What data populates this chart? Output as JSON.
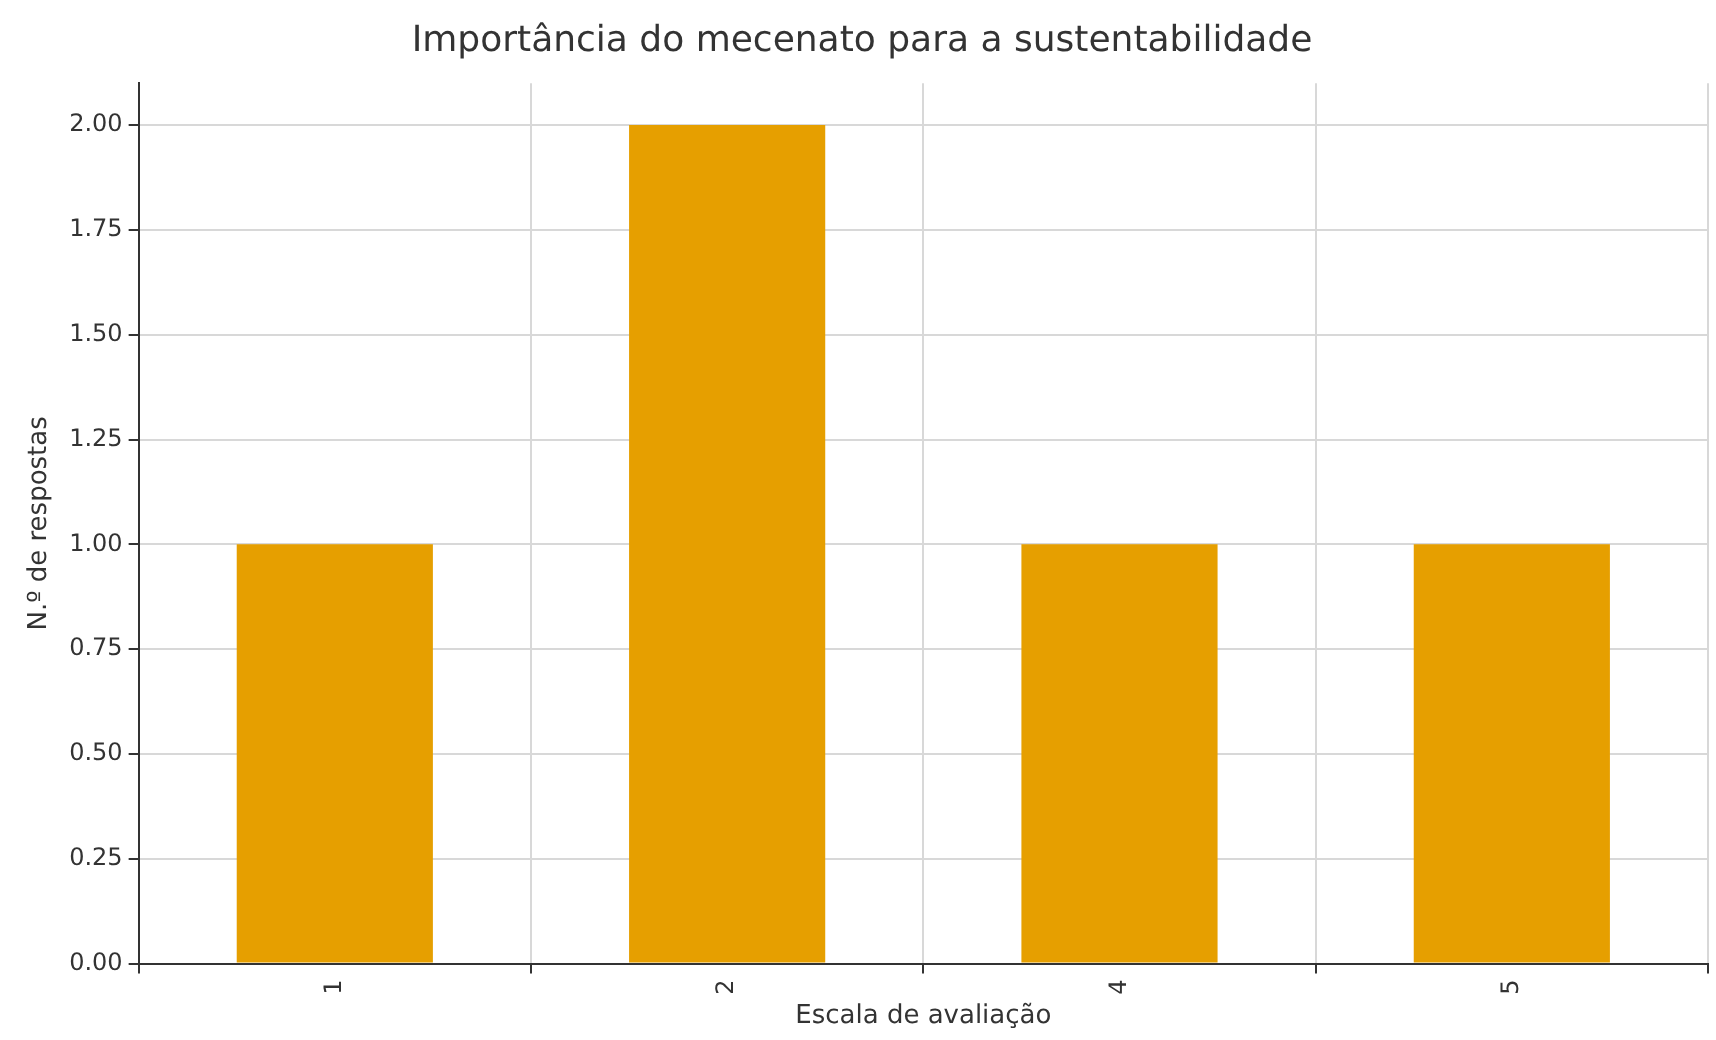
{
  "chart_data": {
    "type": "bar",
    "title": "Importância do mecenato para a sustentabilidade",
    "xlabel": "Escala de avaliação",
    "ylabel": "N.º de respostas",
    "categories": [
      "1",
      "2",
      "4",
      "5"
    ],
    "values": [
      1,
      2,
      1,
      1
    ],
    "color": "#e69f00",
    "ylim": [
      0,
      2.1
    ],
    "yticks": [
      {
        "value": 0,
        "label": "0.00"
      },
      {
        "value": 0.25,
        "label": "0.25"
      },
      {
        "value": 0.5,
        "label": "0.50"
      },
      {
        "value": 0.75,
        "label": "0.75"
      },
      {
        "value": 1,
        "label": "1.00"
      },
      {
        "value": 1.25,
        "label": "1.25"
      },
      {
        "value": 1.5,
        "label": "1.50"
      },
      {
        "value": 1.75,
        "label": "1.75"
      },
      {
        "value": 2,
        "label": "2.00"
      }
    ],
    "grid": true,
    "legend": false
  }
}
